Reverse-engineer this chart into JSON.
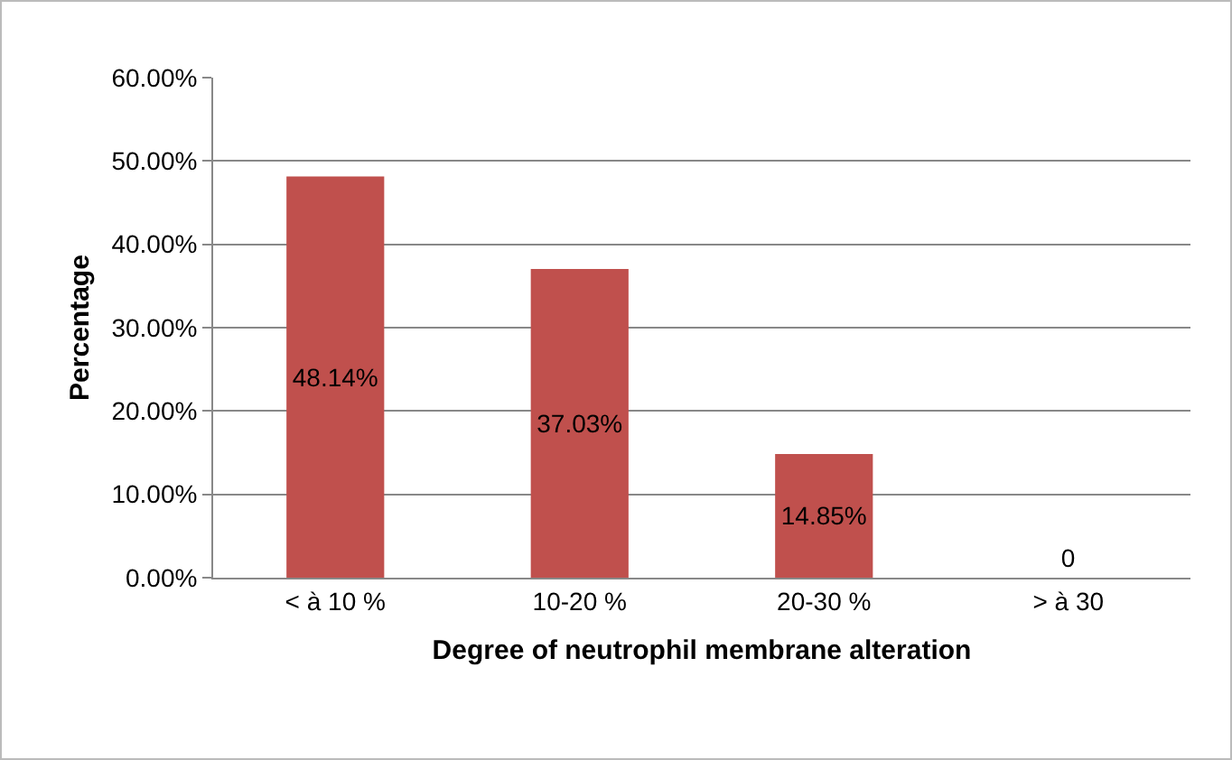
{
  "chart_data": {
    "type": "bar",
    "xlabel": "Degree of neutrophil membrane alteration",
    "ylabel": "Percentage",
    "categories": [
      "< à 10 %",
      "10-20 %",
      "20-30 %",
      "> à 30"
    ],
    "values": [
      48.14,
      37.03,
      14.85,
      0
    ],
    "value_labels": [
      "48.14%",
      "37.03%",
      "14.85%",
      "0"
    ],
    "color": "#c0504d",
    "ylim": [
      0,
      60
    ],
    "yticks": [
      {
        "value": 0,
        "label": "0.00%"
      },
      {
        "value": 10,
        "label": "10.00%"
      },
      {
        "value": 20,
        "label": "20.00%"
      },
      {
        "value": 30,
        "label": "30.00%"
      },
      {
        "value": 40,
        "label": "40.00%"
      },
      {
        "value": 50,
        "label": "50.00%"
      },
      {
        "value": 60,
        "label": "60.00%"
      }
    ],
    "grid": "y"
  }
}
